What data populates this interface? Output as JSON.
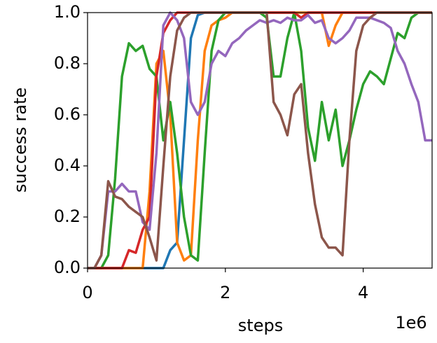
{
  "chart_data": {
    "type": "line",
    "x_label": "steps",
    "y_label": "success rate",
    "x_offset_label": "1e6",
    "xlim": [
      0,
      5
    ],
    "xticks": [
      0,
      2,
      4
    ],
    "ylim": [
      0,
      1
    ],
    "yticks": [
      {
        "value": 0,
        "label": "0.0"
      },
      0.2,
      0.4,
      0.6,
      0.8,
      {
        "value": 1,
        "label": "1.0"
      }
    ],
    "grid": false,
    "x": [
      0,
      0.1,
      0.2,
      0.3,
      0.4,
      0.5,
      0.6,
      0.7,
      0.8,
      0.9,
      1.0,
      1.1,
      1.2,
      1.3,
      1.4,
      1.5,
      1.6,
      1.7,
      1.8,
      1.9,
      2.0,
      2.1,
      2.2,
      2.3,
      2.4,
      2.5,
      2.6,
      2.7,
      2.8,
      2.9,
      3.0,
      3.1,
      3.2,
      3.3,
      3.4,
      3.5,
      3.6,
      3.7,
      3.8,
      3.9,
      4.0,
      4.1,
      4.2,
      4.3,
      4.4,
      4.5,
      4.6,
      4.7,
      4.8,
      4.9,
      5.0
    ],
    "series": [
      {
        "color": "#1f77b4",
        "values": [
          0,
          0,
          0,
          0,
          0,
          0,
          0,
          0,
          0,
          0,
          0,
          0,
          0.07,
          0.1,
          0.5,
          0.9,
          0.99,
          1,
          1,
          1,
          1,
          1,
          1,
          1,
          1,
          1,
          1,
          1,
          1,
          1,
          1,
          1,
          1,
          1,
          1,
          1,
          1,
          1,
          1,
          1,
          1,
          1,
          1,
          1,
          1,
          1,
          1,
          1,
          1,
          1,
          1
        ]
      },
      {
        "color": "#ff7f0e",
        "values": [
          0,
          0,
          0,
          0,
          0,
          0,
          0,
          0,
          0,
          0.3,
          0.8,
          0.85,
          0.6,
          0.1,
          0.03,
          0.05,
          0.5,
          0.85,
          0.95,
          0.97,
          0.98,
          1,
          1,
          1,
          1,
          1,
          1,
          1,
          1,
          1,
          1,
          1,
          1,
          1,
          1,
          0.87,
          0.95,
          1,
          1,
          1,
          1,
          1,
          1,
          1,
          1,
          1,
          1,
          1,
          1,
          1,
          1
        ]
      },
      {
        "color": "#2ca02c",
        "values": [
          0,
          0,
          0,
          0.05,
          0.35,
          0.75,
          0.88,
          0.85,
          0.87,
          0.78,
          0.75,
          0.5,
          0.65,
          0.45,
          0.2,
          0.05,
          0.03,
          0.45,
          0.85,
          0.97,
          1,
          1,
          1,
          1,
          1,
          1,
          0.98,
          0.75,
          0.75,
          0.9,
          1,
          0.85,
          0.55,
          0.42,
          0.65,
          0.5,
          0.62,
          0.4,
          0.5,
          0.62,
          0.72,
          0.77,
          0.75,
          0.72,
          0.82,
          0.92,
          0.9,
          0.98,
          1,
          1,
          1
        ]
      },
      {
        "color": "#d62728",
        "values": [
          0,
          0,
          0,
          0,
          0,
          0,
          0.07,
          0.06,
          0.15,
          0.2,
          0.75,
          0.92,
          0.97,
          1,
          1,
          1,
          1,
          1,
          1,
          1,
          1,
          1,
          1,
          1,
          1,
          1,
          1,
          1,
          1,
          1,
          1,
          0.98,
          1,
          1,
          1,
          1,
          1,
          1,
          1,
          1,
          1,
          1,
          1,
          1,
          1,
          1,
          1,
          1,
          1,
          1,
          1
        ]
      },
      {
        "color": "#9467bd",
        "values": [
          0,
          0,
          0.05,
          0.3,
          0.3,
          0.33,
          0.3,
          0.3,
          0.18,
          0.15,
          0.45,
          0.95,
          1,
          0.97,
          0.9,
          0.65,
          0.6,
          0.65,
          0.8,
          0.85,
          0.83,
          0.88,
          0.9,
          0.93,
          0.95,
          0.97,
          0.96,
          0.97,
          0.96,
          0.98,
          0.97,
          0.97,
          0.99,
          0.96,
          0.97,
          0.9,
          0.88,
          0.9,
          0.93,
          0.98,
          0.98,
          0.98,
          0.97,
          0.96,
          0.94,
          0.85,
          0.8,
          0.72,
          0.65,
          0.5,
          0.5
        ]
      },
      {
        "color": "#8c564b",
        "values": [
          0,
          0,
          0.05,
          0.34,
          0.28,
          0.27,
          0.24,
          0.22,
          0.2,
          0.12,
          0.03,
          0.4,
          0.75,
          0.93,
          0.98,
          1,
          1,
          1,
          1,
          1,
          1,
          1,
          1,
          1,
          1,
          1,
          1,
          0.65,
          0.6,
          0.52,
          0.68,
          0.72,
          0.45,
          0.25,
          0.12,
          0.08,
          0.08,
          0.05,
          0.5,
          0.85,
          0.95,
          0.98,
          1,
          1,
          1,
          1,
          1,
          1,
          1,
          1,
          1
        ]
      }
    ]
  }
}
